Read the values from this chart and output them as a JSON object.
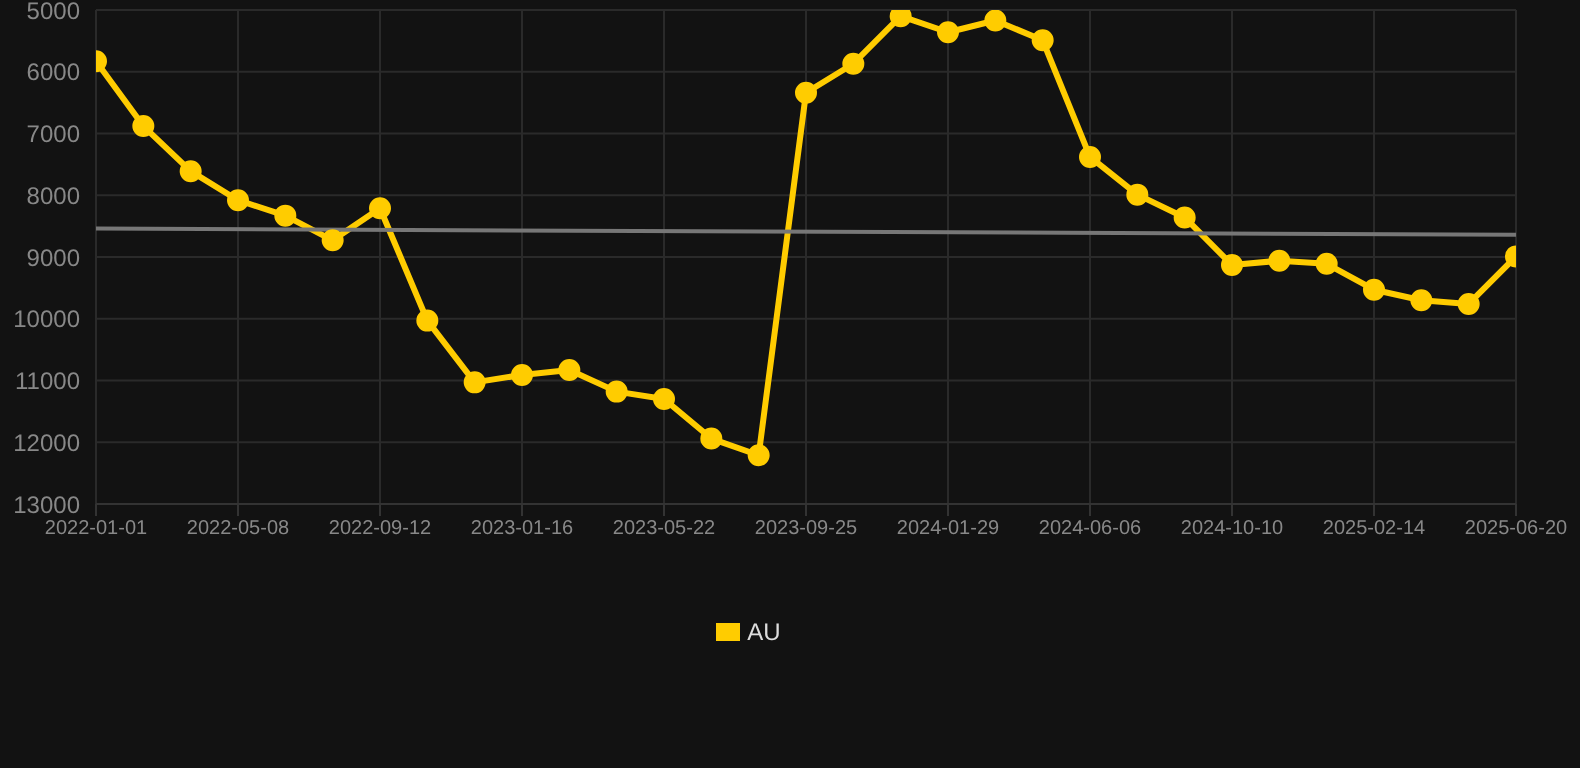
{
  "chart_data": {
    "type": "line",
    "categories": [
      "2022-01-01",
      null,
      null,
      "2022-05-08",
      null,
      null,
      "2022-09-12",
      null,
      null,
      "2023-01-16",
      null,
      null,
      "2023-05-22",
      null,
      null,
      "2023-09-25",
      null,
      null,
      "2024-01-29",
      null,
      null,
      "2024-06-06",
      null,
      null,
      "2024-10-10",
      null,
      null,
      "2025-02-14",
      null,
      null,
      "2025-06-20"
    ],
    "series": [
      {
        "name": "AU",
        "color": "#ffcc00",
        "values": [
          5830,
          6880,
          7610,
          8080,
          8330,
          8730,
          8210,
          10030,
          11030,
          10910,
          10830,
          11180,
          11300,
          11940,
          12210,
          6340,
          5870,
          5100,
          5360,
          5170,
          5490,
          7380,
          7990,
          8360,
          9130,
          9060,
          9110,
          9530,
          9700,
          9760,
          8990
        ]
      },
      {
        "type": "line",
        "color": "#777777",
        "marker": "none",
        "values": [
          8540,
          null,
          null,
          null,
          null,
          null,
          null,
          null,
          null,
          null,
          null,
          null,
          null,
          null,
          null,
          null,
          null,
          null,
          null,
          null,
          null,
          null,
          null,
          null,
          null,
          null,
          null,
          null,
          null,
          null,
          8640
        ]
      }
    ],
    "ylim": [
      13000,
      5000
    ],
    "yticks": [
      5000,
      6000,
      7000,
      8000,
      9000,
      10000,
      11000,
      12000,
      13000
    ],
    "grid": true,
    "legend": "bottom",
    "marker": "circle",
    "line_style": "solid"
  }
}
